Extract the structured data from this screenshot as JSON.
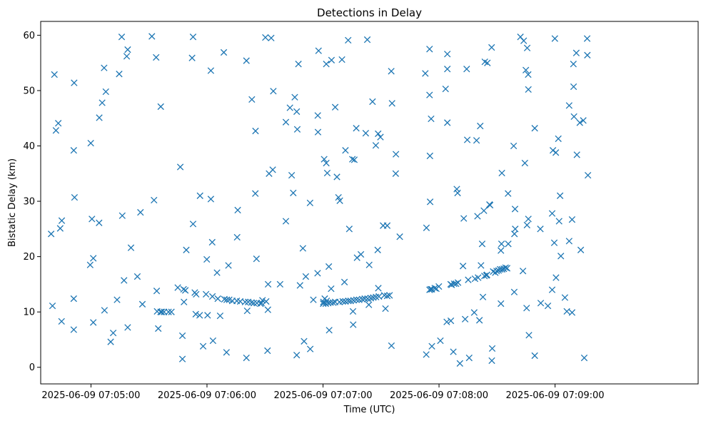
{
  "chart_data": {
    "type": "scatter",
    "title": "Detections in Delay",
    "xlabel": "Time (UTC)",
    "ylabel": "Bistatic Delay (km)",
    "marker": "x",
    "color": "#1f77b4",
    "grid": false,
    "legend": "none",
    "x_time_origin": "2025-06-09 07:04:38",
    "x_unit": "seconds after x_time_origin",
    "xlim": [
      -5,
      335
    ],
    "ylim": [
      -3,
      62.5
    ],
    "xticks": [
      {
        "value": 21,
        "label": "2025-06-09 07:05:00"
      },
      {
        "value": 81,
        "label": "2025-06-09 07:06:00"
      },
      {
        "value": 141,
        "label": "2025-06-09 07:07:00"
      },
      {
        "value": 201,
        "label": "2025-06-09 07:08:00"
      },
      {
        "value": 261,
        "label": "2025-06-09 07:09:00"
      }
    ],
    "yticks": [
      {
        "value": 0,
        "label": "0"
      },
      {
        "value": 10,
        "label": "10"
      },
      {
        "value": 20,
        "label": "20"
      },
      {
        "value": 30,
        "label": "30"
      },
      {
        "value": 40,
        "label": "40"
      },
      {
        "value": 50,
        "label": "50"
      },
      {
        "value": 60,
        "label": "60"
      }
    ],
    "points": [
      [
        0.4,
        24.1
      ],
      [
        1.1,
        11.1
      ],
      [
        2.1,
        52.9
      ],
      [
        2.9,
        42.8
      ],
      [
        4.1,
        44.1
      ],
      [
        5.1,
        25.1
      ],
      [
        5.9,
        26.5
      ],
      [
        5.8,
        8.3
      ],
      [
        12.1,
        39.2
      ],
      [
        12.1,
        12.4
      ],
      [
        12.3,
        51.4
      ],
      [
        12.5,
        30.7
      ],
      [
        12.1,
        6.8
      ],
      [
        20.6,
        18.5
      ],
      [
        20.9,
        40.5
      ],
      [
        21.5,
        26.8
      ],
      [
        22.2,
        19.7
      ],
      [
        22.2,
        8.1
      ],
      [
        25.2,
        26.1
      ],
      [
        25.3,
        45.1
      ],
      [
        26.8,
        47.8
      ],
      [
        27.8,
        54.1
      ],
      [
        28.0,
        10.3
      ],
      [
        28.7,
        49.8
      ],
      [
        31.2,
        4.6
      ],
      [
        32.5,
        6.2
      ],
      [
        34.5,
        12.2
      ],
      [
        35.6,
        53.0
      ],
      [
        36.9,
        59.7
      ],
      [
        37.2,
        27.4
      ],
      [
        38.1,
        15.7
      ],
      [
        39.5,
        56.2
      ],
      [
        40.0,
        57.4
      ],
      [
        40.0,
        7.2
      ],
      [
        41.7,
        21.6
      ],
      [
        45.0,
        16.4
      ],
      [
        46.6,
        28.0
      ],
      [
        47.6,
        11.4
      ],
      [
        52.5,
        59.8
      ],
      [
        53.6,
        30.2
      ],
      [
        54.7,
        56.0
      ],
      [
        55.0,
        13.8
      ],
      [
        55.2,
        10.1
      ],
      [
        55.8,
        7.0
      ],
      [
        57.0,
        10.0
      ],
      [
        57.1,
        47.1
      ],
      [
        57.6,
        10.0
      ],
      [
        58.8,
        10.0
      ],
      [
        61.1,
        10.0
      ],
      [
        62.6,
        10.0
      ],
      [
        65.9,
        14.4
      ],
      [
        67.2,
        36.2
      ],
      [
        68.9,
        14.1
      ],
      [
        68.3,
        5.7
      ],
      [
        68.3,
        1.5
      ],
      [
        69.1,
        11.8
      ],
      [
        69.8,
        13.9
      ],
      [
        70.3,
        21.2
      ],
      [
        73.3,
        55.9
      ],
      [
        73.8,
        59.7
      ],
      [
        73.8,
        25.9
      ],
      [
        74.7,
        13.5
      ],
      [
        75.4,
        13.2
      ],
      [
        75.2,
        9.6
      ],
      [
        77.2,
        9.4
      ],
      [
        77.4,
        31.0
      ],
      [
        79.0,
        3.8
      ],
      [
        80.5,
        13.2
      ],
      [
        80.9,
        19.5
      ],
      [
        81.3,
        9.4
      ],
      [
        83.0,
        53.6
      ],
      [
        83.0,
        30.4
      ],
      [
        83.7,
        22.6
      ],
      [
        83.8,
        12.8
      ],
      [
        84.1,
        4.8
      ],
      [
        86.2,
        17.1
      ],
      [
        86.6,
        12.4
      ],
      [
        87.8,
        9.3
      ],
      [
        89.7,
        56.9
      ],
      [
        90.0,
        12.3
      ],
      [
        91.1,
        2.7
      ],
      [
        92.1,
        18.4
      ],
      [
        91.2,
        12.2
      ],
      [
        92.5,
        12.2
      ],
      [
        94.1,
        12.0
      ],
      [
        96.4,
        12.0
      ],
      [
        96.6,
        23.5
      ],
      [
        96.9,
        28.4
      ],
      [
        98.2,
        11.9
      ],
      [
        100.7,
        11.8
      ],
      [
        101.4,
        55.4
      ],
      [
        101.4,
        1.7
      ],
      [
        101.8,
        10.2
      ],
      [
        102.3,
        11.8
      ],
      [
        104.0,
        11.7
      ],
      [
        104.2,
        48.4
      ],
      [
        105.2,
        11.6
      ],
      [
        106.1,
        42.7
      ],
      [
        106.0,
        31.4
      ],
      [
        106.6,
        19.6
      ],
      [
        106.8,
        11.6
      ],
      [
        108.6,
        11.5
      ],
      [
        109.7,
        12.1
      ],
      [
        109.2,
        11.6
      ],
      [
        111.2,
        59.6
      ],
      [
        111.6,
        11.9
      ],
      [
        112.5,
        10.4
      ],
      [
        112.3,
        3.0
      ],
      [
        112.6,
        15.0
      ],
      [
        113.1,
        35.0
      ],
      [
        114.2,
        59.5
      ],
      [
        115.0,
        35.7
      ],
      [
        115.3,
        49.9
      ],
      [
        118.8,
        15.0
      ],
      [
        121.8,
        44.3
      ],
      [
        121.8,
        26.4
      ],
      [
        123.9,
        46.9
      ],
      [
        124.8,
        34.7
      ],
      [
        125.6,
        31.5
      ],
      [
        126.4,
        48.8
      ],
      [
        127.4,
        46.2
      ],
      [
        127.4,
        2.2
      ],
      [
        127.7,
        43.0
      ],
      [
        128.3,
        54.8
      ],
      [
        129.1,
        14.8
      ],
      [
        130.6,
        21.5
      ],
      [
        131.2,
        4.7
      ],
      [
        132.1,
        16.4
      ],
      [
        134.3,
        29.7
      ],
      [
        134.4,
        3.3
      ],
      [
        136.0,
        12.2
      ],
      [
        138.2,
        17.0
      ],
      [
        138.3,
        45.5
      ],
      [
        138.4,
        42.5
      ],
      [
        138.7,
        57.2
      ],
      [
        141.1,
        11.5
      ],
      [
        141.6,
        37.6
      ],
      [
        141.2,
        11.8
      ],
      [
        141.9,
        12.4
      ],
      [
        142.4,
        11.5
      ],
      [
        142.7,
        54.8
      ],
      [
        142.7,
        36.9
      ],
      [
        142.9,
        12.0
      ],
      [
        143.2,
        35.1
      ],
      [
        143.7,
        11.6
      ],
      [
        144.0,
        18.2
      ],
      [
        144.2,
        6.7
      ],
      [
        144.9,
        11.7
      ],
      [
        145.4,
        55.5
      ],
      [
        145.2,
        14.2
      ],
      [
        146.2,
        11.7
      ],
      [
        147.3,
        47.0
      ],
      [
        147.3,
        11.8
      ],
      [
        148.2,
        34.4
      ],
      [
        149.0,
        30.7
      ],
      [
        149.5,
        11.8
      ],
      [
        149.7,
        30.1
      ],
      [
        150.8,
        55.6
      ],
      [
        151.2,
        11.9
      ],
      [
        152.1,
        15.4
      ],
      [
        152.6,
        39.2
      ],
      [
        152.6,
        11.9
      ],
      [
        154.0,
        59.1
      ],
      [
        154.1,
        12.0
      ],
      [
        154.6,
        25.0
      ],
      [
        155.3,
        12.0
      ],
      [
        156.2,
        37.6
      ],
      [
        156.8,
        12.1
      ],
      [
        156.5,
        10.1
      ],
      [
        156.6,
        7.7
      ],
      [
        157.2,
        37.5
      ],
      [
        158.2,
        43.2
      ],
      [
        158.3,
        12.2
      ],
      [
        158.6,
        19.8
      ],
      [
        159.7,
        12.2
      ],
      [
        160.6,
        20.4
      ],
      [
        161.3,
        12.3
      ],
      [
        162.6,
        12.4
      ],
      [
        163.1,
        42.3
      ],
      [
        163.9,
        59.2
      ],
      [
        164.1,
        12.4
      ],
      [
        164.9,
        18.5
      ],
      [
        164.7,
        11.3
      ],
      [
        165.7,
        12.5
      ],
      [
        166.6,
        48.0
      ],
      [
        167.0,
        12.6
      ],
      [
        168.3,
        40.1
      ],
      [
        168.4,
        12.7
      ],
      [
        169.5,
        42.2
      ],
      [
        169.6,
        14.3
      ],
      [
        169.3,
        21.2
      ],
      [
        169.9,
        12.8
      ],
      [
        170.7,
        41.6
      ],
      [
        172.1,
        25.6
      ],
      [
        172.7,
        13.0
      ],
      [
        173.3,
        10.6
      ],
      [
        174.2,
        25.6
      ],
      [
        174.2,
        12.9
      ],
      [
        175.4,
        13.0
      ],
      [
        176.3,
        53.5
      ],
      [
        176.7,
        47.7
      ],
      [
        176.4,
        3.9
      ],
      [
        178.6,
        35.0
      ],
      [
        178.7,
        38.5
      ],
      [
        180.7,
        23.6
      ],
      [
        193.9,
        53.1
      ],
      [
        194.5,
        25.2
      ],
      [
        194.4,
        2.3
      ],
      [
        196.1,
        57.5
      ],
      [
        196.1,
        49.2
      ],
      [
        196.3,
        38.2
      ],
      [
        196.4,
        29.9
      ],
      [
        196.9,
        44.9
      ],
      [
        196.1,
        14.0
      ],
      [
        196.7,
        14.1
      ],
      [
        197.3,
        3.8
      ],
      [
        197.3,
        14.1
      ],
      [
        198.8,
        14.3
      ],
      [
        199.6,
        14.2
      ],
      [
        200.9,
        14.6
      ],
      [
        201.7,
        4.8
      ],
      [
        204.4,
        50.3
      ],
      [
        205.3,
        56.6
      ],
      [
        205.3,
        53.9
      ],
      [
        205.3,
        44.2
      ],
      [
        205.0,
        8.2
      ],
      [
        207.0,
        15.0
      ],
      [
        207.1,
        8.4
      ],
      [
        207.5,
        14.9
      ],
      [
        208.4,
        2.8
      ],
      [
        208.8,
        15.1
      ],
      [
        209.8,
        15.1
      ],
      [
        210.2,
        32.2
      ],
      [
        210.6,
        31.5
      ],
      [
        210.8,
        15.3
      ],
      [
        211.8,
        0.7
      ],
      [
        213.4,
        18.3
      ],
      [
        213.8,
        26.9
      ],
      [
        214.5,
        8.7
      ],
      [
        215.3,
        53.9
      ],
      [
        215.6,
        41.1
      ],
      [
        216.1,
        15.8
      ],
      [
        216.6,
        1.7
      ],
      [
        219.2,
        9.9
      ],
      [
        219.6,
        16.0
      ],
      [
        220.4,
        41.0
      ],
      [
        220.9,
        27.3
      ],
      [
        221.2,
        16.2
      ],
      [
        221.9,
        8.5
      ],
      [
        222.3,
        43.6
      ],
      [
        222.7,
        18.4
      ],
      [
        223.3,
        22.3
      ],
      [
        223.7,
        12.7
      ],
      [
        224.2,
        28.3
      ],
      [
        224.5,
        16.5
      ],
      [
        224.7,
        55.2
      ],
      [
        225.5,
        16.6
      ],
      [
        226.0,
        55.0
      ],
      [
        225.8,
        16.7
      ],
      [
        227.1,
        29.4
      ],
      [
        227.4,
        29.3
      ],
      [
        228.2,
        57.8
      ],
      [
        228.5,
        3.4
      ],
      [
        228.3,
        1.2
      ],
      [
        229.0,
        17.3
      ],
      [
        230.1,
        17.1
      ],
      [
        230.8,
        17.4
      ],
      [
        231.8,
        17.5
      ],
      [
        232.6,
        17.7
      ],
      [
        233.0,
        11.5
      ],
      [
        233.5,
        35.1
      ],
      [
        233.3,
        22.3
      ],
      [
        233.0,
        21.1
      ],
      [
        233.6,
        17.7
      ],
      [
        234.5,
        17.8
      ],
      [
        235.4,
        18.0
      ],
      [
        236.2,
        17.9
      ],
      [
        236.7,
        31.4
      ],
      [
        236.8,
        22.3
      ],
      [
        239.6,
        40.0
      ],
      [
        239.9,
        13.6
      ],
      [
        240.0,
        24.1
      ],
      [
        240.3,
        28.6
      ],
      [
        240.4,
        25.0
      ],
      [
        243.1,
        59.7
      ],
      [
        244.4,
        17.4
      ],
      [
        244.8,
        59.0
      ],
      [
        245.4,
        36.9
      ],
      [
        245.9,
        53.7
      ],
      [
        246.6,
        57.7
      ],
      [
        246.5,
        25.7
      ],
      [
        246.3,
        10.7
      ],
      [
        247.1,
        52.9
      ],
      [
        247.2,
        50.2
      ],
      [
        247.2,
        26.8
      ],
      [
        247.5,
        5.8
      ],
      [
        250.5,
        43.2
      ],
      [
        250.5,
        2.1
      ],
      [
        253.4,
        25.0
      ],
      [
        253.6,
        11.6
      ],
      [
        257.3,
        11.1
      ],
      [
        259.5,
        27.8
      ],
      [
        259.9,
        39.2
      ],
      [
        259.5,
        14.0
      ],
      [
        260.6,
        22.5
      ],
      [
        260.9,
        59.4
      ],
      [
        261.4,
        38.8
      ],
      [
        261.5,
        16.2
      ],
      [
        262.7,
        41.3
      ],
      [
        263.1,
        26.4
      ],
      [
        263.6,
        31.0
      ],
      [
        264.0,
        20.1
      ],
      [
        266.1,
        12.6
      ],
      [
        267.1,
        10.1
      ],
      [
        268.3,
        47.3
      ],
      [
        268.3,
        22.8
      ],
      [
        269.8,
        9.9
      ],
      [
        269.8,
        26.7
      ],
      [
        270.5,
        54.8
      ],
      [
        270.6,
        50.7
      ],
      [
        270.8,
        45.3
      ],
      [
        272.0,
        56.8
      ],
      [
        272.3,
        38.4
      ],
      [
        273.8,
        44.2
      ],
      [
        274.3,
        21.2
      ],
      [
        275.6,
        44.6
      ],
      [
        276.1,
        1.7
      ],
      [
        277.7,
        56.4
      ],
      [
        278.0,
        34.7
      ],
      [
        277.6,
        59.4
      ]
    ]
  }
}
